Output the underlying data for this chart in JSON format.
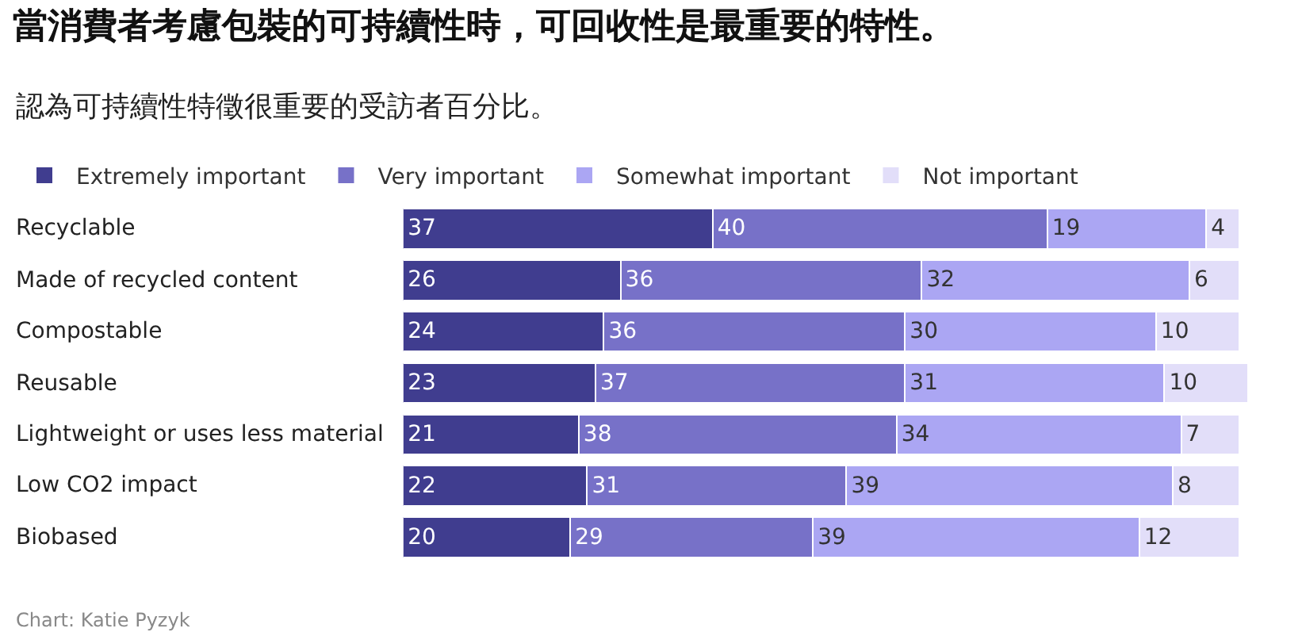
{
  "chart_data": {
    "type": "bar",
    "orientation": "horizontal",
    "stacked": true,
    "data_labels": true,
    "legend": "top left",
    "title": "當消費者考慮包裝的可持續性時，可回收性是最重要的特性。",
    "subtitle": "認為可持續性特徵很重要的受訪者百分比。",
    "annotations": [
      "Chart: Katie Pyzyk"
    ],
    "categories": [
      "Recyclable",
      "Made of recycled content",
      "Compostable",
      "Reusable",
      "Lightweight or uses less material",
      "Low CO2 impact",
      "Biobased"
    ],
    "series": [
      {
        "name": "Extremely important",
        "color": "#403d8f",
        "values": [
          37,
          26,
          24,
          23,
          21,
          22,
          20
        ]
      },
      {
        "name": "Very important",
        "color": "#7771c8",
        "values": [
          40,
          36,
          36,
          37,
          38,
          31,
          29
        ]
      },
      {
        "name": "Somewhat important",
        "color": "#aba6f3",
        "values": [
          19,
          32,
          30,
          31,
          34,
          39,
          39
        ]
      },
      {
        "name": "Not important",
        "color": "#e2def9",
        "values": [
          4,
          6,
          10,
          10,
          7,
          8,
          12
        ]
      }
    ]
  }
}
